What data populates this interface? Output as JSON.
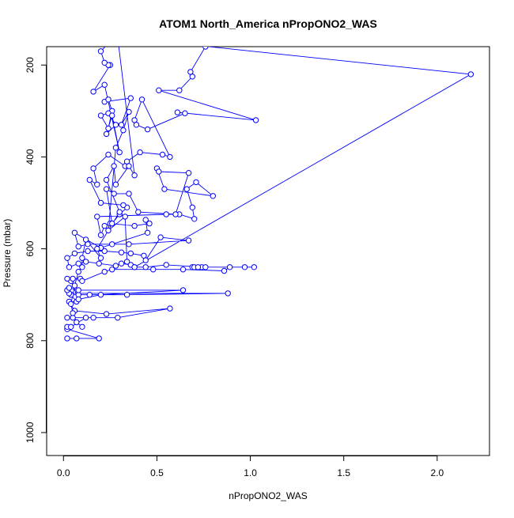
{
  "chart_data": {
    "type": "line",
    "title": "ATOM1 North_America nPropONO2_WAS",
    "xlabel": "nPropONO2_WAS",
    "ylabel": "Pressure (mbar)",
    "xlim": [
      -0.09,
      2.28
    ],
    "ylim": [
      1050,
      160
    ],
    "y_reversed": true,
    "grid": false,
    "legend": "none",
    "x_ticks": [
      0.0,
      0.5,
      1.0,
      1.5,
      2.0
    ],
    "x_tick_labels": [
      "0.0",
      "0.5",
      "1.0",
      "1.5",
      "2.0"
    ],
    "y_ticks": [
      200,
      400,
      600,
      800,
      1000
    ],
    "y_tick_labels": [
      "200",
      "400",
      "600",
      "800",
      "1000"
    ],
    "series": [
      {
        "color": "#0000ff",
        "marker": "open-circle",
        "points": [
          [
            0.02,
            795
          ],
          [
            0.07,
            795
          ],
          [
            0.19,
            795
          ],
          [
            0.02,
            775
          ],
          [
            0.02,
            770
          ],
          [
            0.04,
            770
          ],
          [
            0.12,
            750
          ],
          [
            0.02,
            750
          ],
          [
            0.05,
            750
          ],
          [
            0.16,
            750
          ],
          [
            0.29,
            750
          ],
          [
            0.57,
            730
          ],
          [
            0.23,
            742
          ],
          [
            0.06,
            735
          ],
          [
            0.03,
            715
          ],
          [
            0.07,
            715
          ],
          [
            0.04,
            700
          ],
          [
            0.08,
            700
          ],
          [
            0.14,
            700
          ],
          [
            0.34,
            700
          ],
          [
            0.88,
            697
          ],
          [
            0.03,
            697
          ],
          [
            0.02,
            690
          ],
          [
            0.03,
            685
          ],
          [
            0.08,
            690
          ],
          [
            0.64,
            690
          ],
          [
            0.2,
            700
          ],
          [
            0.08,
            710
          ],
          [
            0.04,
            670
          ],
          [
            0.05,
            665
          ],
          [
            0.02,
            665
          ],
          [
            0.09,
            665
          ],
          [
            0.1,
            670
          ],
          [
            0.22,
            650
          ],
          [
            0.26,
            645
          ],
          [
            0.48,
            645
          ],
          [
            0.64,
            645
          ],
          [
            0.86,
            648
          ],
          [
            0.89,
            640
          ],
          [
            0.97,
            640
          ],
          [
            1.02,
            640
          ],
          [
            0.74,
            640
          ],
          [
            0.69,
            640
          ],
          [
            0.7,
            640
          ],
          [
            0.72,
            640
          ],
          [
            0.76,
            640
          ],
          [
            0.55,
            635
          ],
          [
            0.44,
            640
          ],
          [
            0.38,
            640
          ],
          [
            0.36,
            635
          ],
          [
            0.31,
            632
          ],
          [
            0.28,
            637
          ],
          [
            0.19,
            632
          ],
          [
            0.12,
            628
          ],
          [
            0.08,
            632
          ],
          [
            0.03,
            640
          ],
          [
            0.02,
            620
          ],
          [
            0.06,
            610
          ],
          [
            0.13,
            605
          ],
          [
            0.22,
            605
          ],
          [
            0.31,
            608
          ],
          [
            0.36,
            610
          ],
          [
            0.43,
            615
          ],
          [
            0.44,
            625
          ],
          [
            0.52,
            575
          ],
          [
            0.67,
            582
          ],
          [
            0.35,
            590
          ],
          [
            0.13,
            590
          ],
          [
            0.08,
            595
          ],
          [
            0.06,
            565
          ],
          [
            0.2,
            598
          ],
          [
            0.26,
            590
          ],
          [
            0.45,
            565
          ],
          [
            0.44,
            537
          ],
          [
            0.46,
            545
          ],
          [
            0.38,
            550
          ],
          [
            0.25,
            545
          ],
          [
            0.22,
            550
          ],
          [
            0.2,
            570
          ],
          [
            0.18,
            530
          ],
          [
            0.55,
            525
          ],
          [
            0.62,
            525
          ],
          [
            0.7,
            535
          ],
          [
            0.69,
            510
          ],
          [
            0.66,
            470
          ],
          [
            0.71,
            455
          ],
          [
            0.8,
            485
          ],
          [
            0.54,
            470
          ],
          [
            0.5,
            425
          ],
          [
            0.51,
            432
          ],
          [
            0.67,
            435
          ],
          [
            0.6,
            525
          ],
          [
            0.4,
            520
          ],
          [
            0.35,
            480
          ],
          [
            0.27,
            480
          ],
          [
            0.23,
            470
          ],
          [
            0.26,
            545
          ],
          [
            0.3,
            525
          ],
          [
            0.34,
            510
          ],
          [
            0.32,
            505
          ],
          [
            0.2,
            500
          ],
          [
            0.14,
            450
          ],
          [
            0.18,
            460
          ],
          [
            0.16,
            425
          ],
          [
            0.24,
            395
          ],
          [
            0.33,
            420
          ],
          [
            0.34,
            410
          ],
          [
            0.41,
            390
          ],
          [
            0.53,
            395
          ],
          [
            0.57,
            400
          ],
          [
            0.42,
            275
          ],
          [
            0.38,
            320
          ],
          [
            0.39,
            330
          ],
          [
            0.45,
            340
          ],
          [
            0.65,
            305
          ],
          [
            0.61,
            303
          ],
          [
            1.03,
            320
          ],
          [
            0.51,
            255
          ],
          [
            0.62,
            255
          ],
          [
            0.69,
            225
          ],
          [
            0.68,
            215
          ],
          [
            0.76,
            160
          ],
          [
            0.43,
            145
          ],
          [
            2.18,
            220
          ],
          [
            0.38,
            640
          ],
          [
            0.34,
            628
          ],
          [
            0.33,
            530
          ],
          [
            0.24,
            560
          ],
          [
            0.28,
            380
          ],
          [
            0.32,
            342
          ],
          [
            0.35,
            302
          ],
          [
            0.31,
            330
          ],
          [
            0.36,
            272
          ],
          [
            0.22,
            280
          ],
          [
            0.24,
            275
          ],
          [
            0.26,
            300
          ],
          [
            0.24,
            338
          ],
          [
            0.2,
            310
          ],
          [
            0.24,
            305
          ],
          [
            0.28,
            330
          ],
          [
            0.23,
            350
          ],
          [
            0.26,
            310
          ],
          [
            0.3,
            390
          ],
          [
            0.22,
            243
          ],
          [
            0.16,
            258
          ],
          [
            0.25,
            200
          ],
          [
            0.24,
            200
          ],
          [
            0.22,
            195
          ],
          [
            0.2,
            170
          ],
          [
            0.27,
            140
          ],
          [
            0.29,
            140
          ],
          [
            0.38,
            440
          ],
          [
            0.35,
            420
          ],
          [
            0.28,
            460
          ],
          [
            0.27,
            420
          ],
          [
            0.23,
            450
          ],
          [
            0.3,
            520
          ],
          [
            0.18,
            600
          ],
          [
            0.2,
            620
          ],
          [
            0.12,
            580
          ],
          [
            0.1,
            620
          ],
          [
            0.1,
            640
          ],
          [
            0.08,
            650
          ],
          [
            0.06,
            680
          ],
          [
            0.04,
            720
          ],
          [
            0.05,
            740
          ],
          [
            0.07,
            760
          ],
          [
            0.1,
            770
          ]
        ]
      }
    ]
  }
}
